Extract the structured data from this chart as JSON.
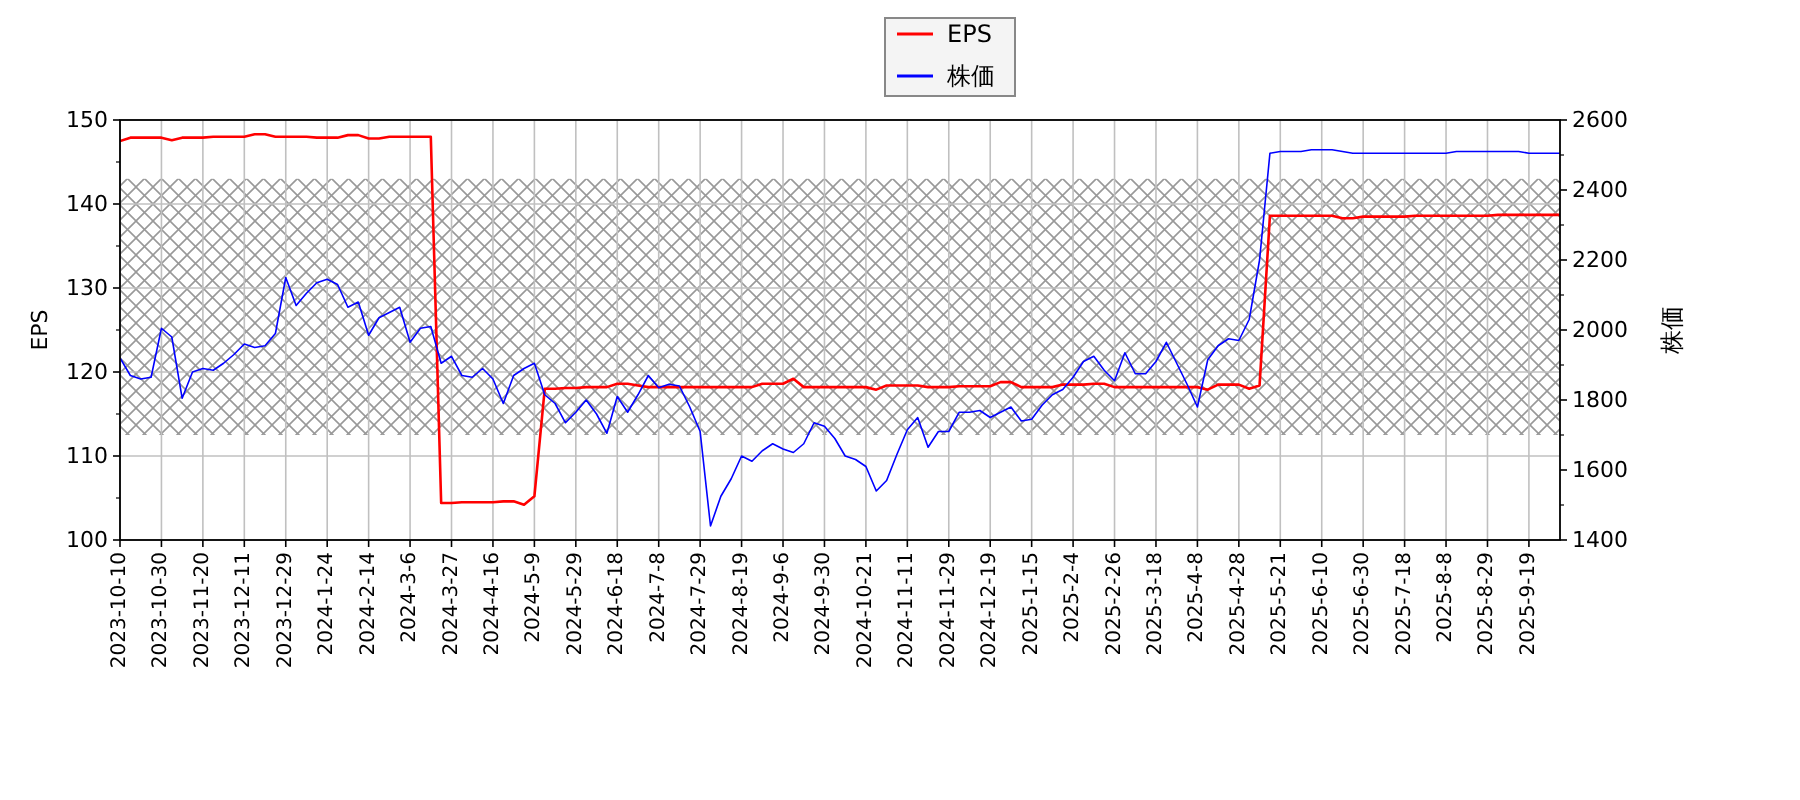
{
  "chart_data": {
    "type": "line",
    "ylabel": "EPS",
    "y2label": "株価",
    "categories": [
      "2023-10-10",
      null,
      null,
      null,
      "2023-10-30",
      null,
      null,
      null,
      "2023-11-20",
      null,
      null,
      null,
      "2023-12-11",
      null,
      null,
      null,
      "2023-12-29",
      null,
      null,
      null,
      "2024-1-24",
      null,
      null,
      null,
      "2024-2-14",
      null,
      null,
      null,
      "2024-3-6",
      null,
      null,
      null,
      "2024-3-27",
      null,
      null,
      null,
      "2024-4-16",
      null,
      null,
      null,
      "2024-5-9",
      null,
      null,
      null,
      "2024-5-29",
      null,
      null,
      null,
      "2024-6-18",
      null,
      null,
      null,
      "2024-7-8",
      null,
      null,
      null,
      "2024-7-29",
      null,
      null,
      null,
      "2024-8-19",
      null,
      null,
      null,
      "2024-9-6",
      null,
      null,
      null,
      "2024-9-30",
      null,
      null,
      null,
      "2024-10-21",
      null,
      null,
      null,
      "2024-11-11",
      null,
      null,
      null,
      "2024-11-29",
      null,
      null,
      null,
      "2024-12-19",
      null,
      null,
      null,
      "2025-1-15",
      null,
      null,
      null,
      "2025-2-4",
      null,
      null,
      null,
      "2025-2-26",
      null,
      null,
      null,
      "2025-3-18",
      null,
      null,
      null,
      "2025-4-8",
      null,
      null,
      null,
      "2025-4-28",
      null,
      null,
      null,
      "2025-5-21",
      null,
      null,
      null,
      "2025-6-10",
      null,
      null,
      null,
      "2025-6-30",
      null,
      null,
      null,
      "2025-7-18",
      null,
      null,
      null,
      "2025-8-8",
      null,
      null,
      null,
      "2025-8-29",
      null,
      null,
      null,
      "2025-9-19",
      null,
      null,
      null
    ],
    "ylim": [
      100,
      150
    ],
    "yticks": [
      100,
      110,
      120,
      130,
      140,
      150
    ],
    "y2lim": [
      1400,
      2600
    ],
    "y2ticks": [
      1400,
      1600,
      1800,
      2000,
      2200,
      2400,
      2600
    ],
    "grid": true,
    "legend": "top",
    "bands": [
      {
        "axis": "y",
        "from": 112.5,
        "to": 143,
        "color": "#999999"
      }
    ],
    "series": [
      {
        "name": "EPS",
        "color": "#ff0000",
        "axis": "y",
        "values": [
          147.5,
          147.9,
          147.9,
          147.9,
          147.9,
          147.6,
          147.9,
          147.9,
          147.9,
          148.0,
          148.0,
          148.0,
          148.0,
          148.3,
          148.3,
          148.0,
          148.0,
          148.0,
          148.0,
          147.9,
          147.9,
          147.9,
          148.2,
          148.2,
          147.8,
          147.8,
          148.0,
          148.0,
          148.0,
          148.0,
          148.0,
          104.4,
          104.4,
          104.5,
          104.5,
          104.5,
          104.5,
          104.6,
          104.6,
          104.2,
          105.2,
          118.0,
          118.0,
          118.1,
          118.1,
          118.2,
          118.2,
          118.2,
          118.6,
          118.6,
          118.4,
          118.2,
          118.2,
          118.2,
          118.2,
          118.2,
          118.2,
          118.2,
          118.2,
          118.2,
          118.2,
          118.2,
          118.6,
          118.6,
          118.6,
          119.2,
          118.2,
          118.2,
          118.2,
          118.2,
          118.2,
          118.2,
          118.2,
          117.9,
          118.4,
          118.4,
          118.4,
          118.4,
          118.2,
          118.2,
          118.2,
          118.3,
          118.3,
          118.3,
          118.3,
          118.8,
          118.8,
          118.2,
          118.2,
          118.2,
          118.2,
          118.5,
          118.5,
          118.5,
          118.6,
          118.6,
          118.2,
          118.2,
          118.2,
          118.2,
          118.2,
          118.2,
          118.2,
          118.2,
          118.2,
          117.9,
          118.5,
          118.5,
          118.5,
          118.0,
          118.4,
          138.6,
          138.6,
          138.6,
          138.6,
          138.6,
          138.6,
          138.6,
          138.3,
          138.3,
          138.5,
          138.5,
          138.5,
          138.5,
          138.5,
          138.6,
          138.6,
          138.6,
          138.6,
          138.6,
          138.6,
          138.6,
          138.6,
          138.7,
          138.7,
          138.7,
          138.7,
          138.7,
          138.7,
          138.7
        ]
      },
      {
        "name": "株価",
        "color": "#0000ff",
        "axis": "y2",
        "values": [
          1920,
          1870,
          1860,
          1865,
          2005,
          1980,
          1805,
          1880,
          1890,
          1885,
          1905,
          1930,
          1960,
          1950,
          1955,
          1990,
          2150,
          2070,
          2105,
          2135,
          2145,
          2130,
          2065,
          2080,
          1985,
          2035,
          2050,
          2065,
          1965,
          2005,
          2010,
          1905,
          1925,
          1870,
          1865,
          1890,
          1860,
          1790,
          1870,
          1890,
          1905,
          1815,
          1790,
          1735,
          1765,
          1800,
          1760,
          1705,
          1810,
          1765,
          1815,
          1870,
          1835,
          1845,
          1840,
          1780,
          1710,
          1440,
          1525,
          1575,
          1640,
          1625,
          1655,
          1675,
          1660,
          1650,
          1675,
          1735,
          1725,
          1690,
          1640,
          1630,
          1610,
          1540,
          1570,
          1645,
          1715,
          1750,
          1665,
          1710,
          1710,
          1765,
          1765,
          1770,
          1750,
          1765,
          1780,
          1740,
          1745,
          1785,
          1815,
          1830,
          1865,
          1910,
          1925,
          1885,
          1855,
          1935,
          1875,
          1875,
          1910,
          1965,
          1905,
          1845,
          1780,
          1915,
          1955,
          1975,
          1970,
          2030,
          2200,
          2505,
          2510,
          2510,
          2510,
          2515,
          2515,
          2515,
          2510,
          2505,
          2505,
          2505,
          2505,
          2505,
          2505,
          2505,
          2505,
          2505,
          2505,
          2510,
          2510,
          2510,
          2510,
          2510,
          2510,
          2510,
          2505,
          2505,
          2505,
          2505
        ]
      }
    ]
  }
}
